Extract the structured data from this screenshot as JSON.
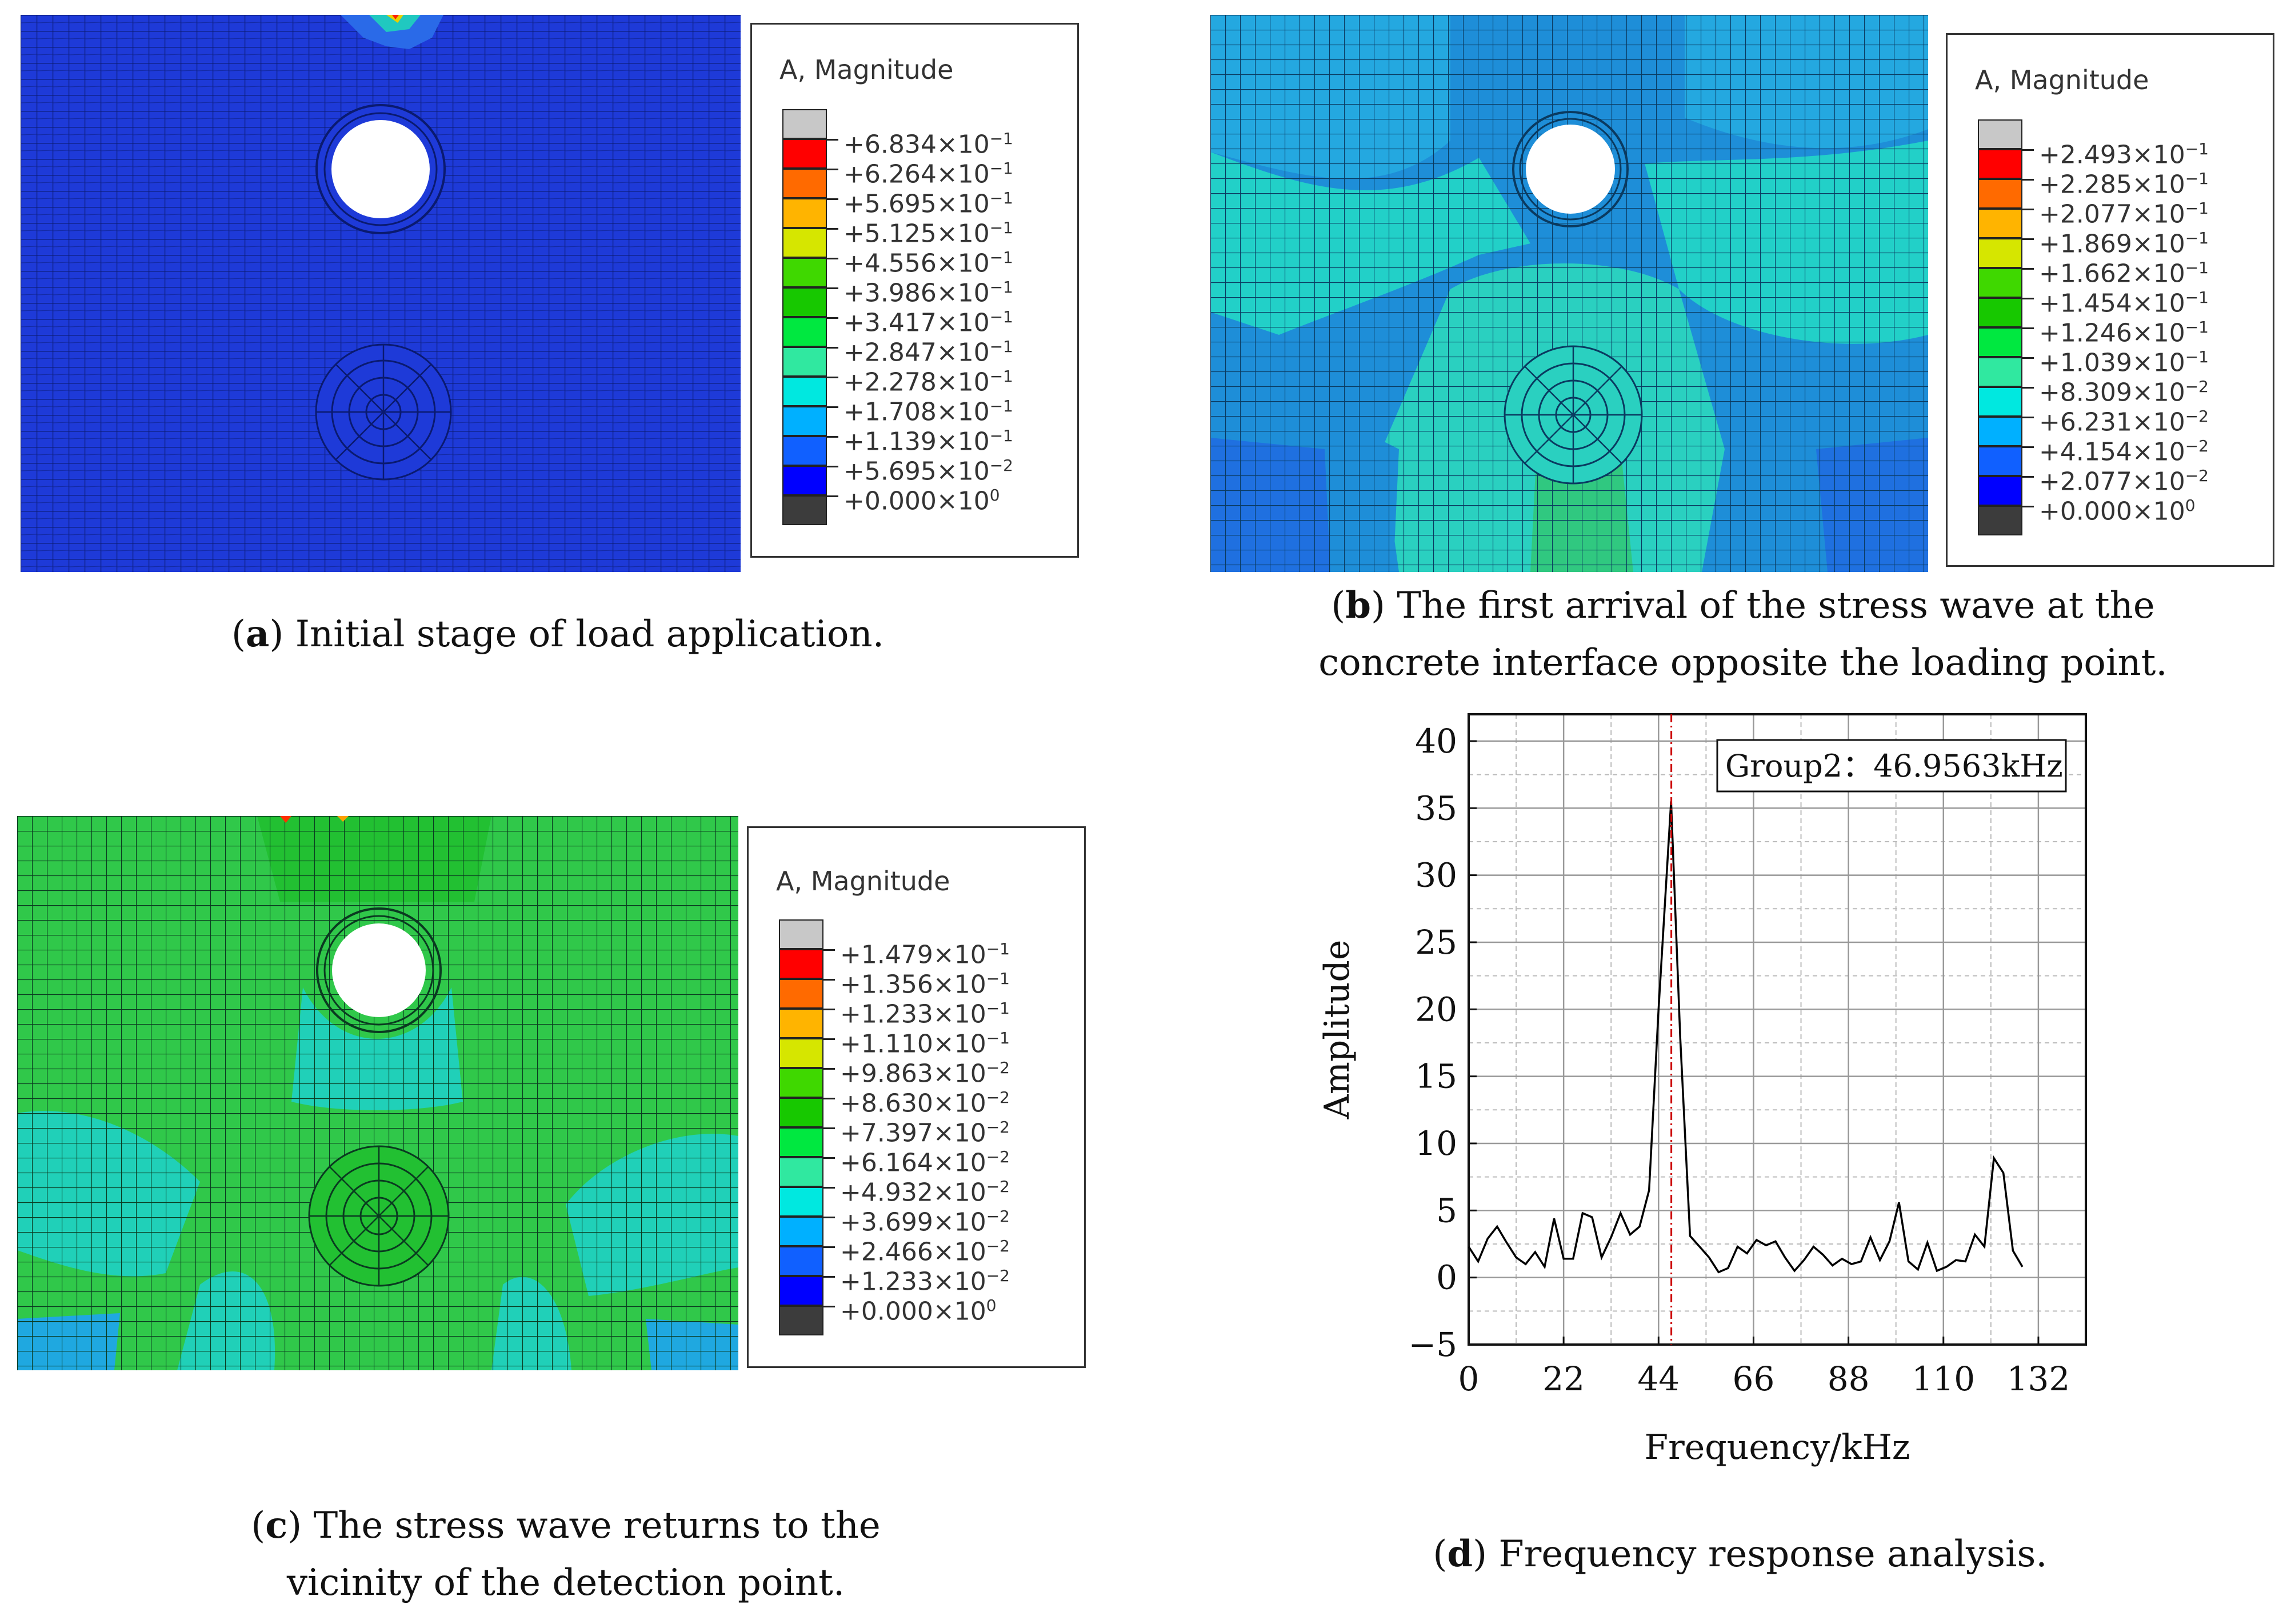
{
  "panels": [
    {
      "id": "a",
      "legend_title": "A, Magnitude",
      "legend_values": [
        "+6.834×10",
        "+6.264×10",
        "+5.695×10",
        "+5.125×10",
        "+4.556×10",
        "+3.986×10",
        "+3.417×10",
        "+2.847×10",
        "+2.278×10",
        "+1.708×10",
        "+1.139×10",
        "+5.695×10",
        "+0.000×10"
      ],
      "legend_exponents": [
        "−1",
        "−1",
        "−1",
        "−1",
        "−1",
        "−1",
        "−1",
        "−1",
        "−1",
        "−1",
        "−1",
        "−2",
        "0"
      ],
      "caption_letter": "a",
      "caption_text": ") Initial stage of load application."
    },
    {
      "id": "b",
      "legend_title": "A, Magnitude",
      "legend_values": [
        "+2.493×10",
        "+2.285×10",
        "+2.077×10",
        "+1.869×10",
        "+1.662×10",
        "+1.454×10",
        "+1.246×10",
        "+1.039×10",
        "+8.309×10",
        "+6.231×10",
        "+4.154×10",
        "+2.077×10",
        "+0.000×10"
      ],
      "legend_exponents": [
        "−1",
        "−1",
        "−1",
        "−1",
        "−1",
        "−1",
        "−1",
        "−1",
        "−2",
        "−2",
        "−2",
        "−2",
        "0"
      ],
      "caption_letter": "b",
      "caption_line1": ") The first arrival of the stress wave at the",
      "caption_line2": "concrete interface opposite the loading point."
    },
    {
      "id": "c",
      "legend_title": "A, Magnitude",
      "legend_values": [
        "+1.479×10",
        "+1.356×10",
        "+1.233×10",
        "+1.110×10",
        "+9.863×10",
        "+8.630×10",
        "+7.397×10",
        "+6.164×10",
        "+4.932×10",
        "+3.699×10",
        "+2.466×10",
        "+1.233×10",
        "+0.000×10"
      ],
      "legend_exponents": [
        "−1",
        "−1",
        "−1",
        "−1",
        "−2",
        "−2",
        "−2",
        "−2",
        "−2",
        "−2",
        "−2",
        "−2",
        "0"
      ],
      "caption_letter": "c",
      "caption_line1": ") The stress wave returns to the",
      "caption_line2": "vicinity of the detection point."
    },
    {
      "id": "d",
      "caption_letter": "d",
      "caption_text": ") Frequency response analysis."
    }
  ],
  "legend_colors": [
    "#c8c8c8",
    "#ff0000",
    "#ff6a00",
    "#ffb400",
    "#d6e600",
    "#3fd800",
    "#17c800",
    "#00e840",
    "#30e8a0",
    "#00e8e0",
    "#00b0ff",
    "#1060ff",
    "#0000ff",
    "#3c3c3c"
  ],
  "mesh_colors": {
    "a_bg": "#1e3ad8",
    "b_bg": "#1e8ed8",
    "b_cyan": "#22d0c8",
    "c_bg": "#30c84a",
    "c_cyan": "#20d0b8"
  },
  "chart_data": {
    "type": "line",
    "title": "",
    "xlabel": "Frequency/kHz",
    "ylabel": "Amplitude",
    "xlim": [
      0,
      143
    ],
    "ylim": [
      -5,
      42
    ],
    "xticks": [
      0,
      22,
      44,
      66,
      88,
      110,
      132
    ],
    "yticks": [
      -5,
      0,
      5,
      10,
      15,
      20,
      25,
      30,
      35,
      40
    ],
    "xtick_labels": [
      "0",
      "22",
      "44",
      "66",
      "88",
      "110",
      "132"
    ],
    "ytick_labels": [
      "−5",
      "0",
      "5",
      "10",
      "15",
      "20",
      "25",
      "30",
      "35",
      "40"
    ],
    "annotation": "Group2：46.9563kHz",
    "marker_x": 46.9563,
    "series": [
      {
        "name": "Group2",
        "x": [
          0,
          2.2,
          4.4,
          6.6,
          8.8,
          11,
          13.2,
          15.4,
          17.6,
          19.8,
          22,
          24.2,
          26.4,
          28.6,
          30.8,
          33,
          35.2,
          37.4,
          39.6,
          41.8,
          44,
          46.9,
          49,
          51.3,
          53.5,
          55.7,
          57.9,
          60.1,
          62.3,
          64.5,
          66.7,
          68.9,
          71.1,
          73.3,
          75.5,
          77.7,
          79.9,
          82.1,
          84.3,
          86.5,
          88.7,
          90.9,
          93.1,
          95.3,
          97.5,
          99.7,
          101.9,
          104.1,
          106.3,
          108.5,
          110.7,
          112.9,
          115.1,
          117.3,
          119.5,
          121.7,
          123.9,
          126.1,
          128.3
        ],
        "values": [
          2.3,
          1.2,
          2.9,
          3.8,
          2.6,
          1.5,
          1.0,
          1.9,
          0.8,
          4.4,
          1.4,
          1.4,
          4.8,
          4.5,
          1.5,
          3.0,
          4.8,
          3.2,
          3.8,
          6.5,
          20,
          35.5,
          18,
          3.1,
          2.3,
          1.5,
          0.4,
          0.7,
          2.3,
          1.8,
          2.8,
          2.4,
          2.7,
          1.5,
          0.5,
          1.3,
          2.3,
          1.7,
          0.9,
          1.4,
          1.0,
          1.2,
          3.0,
          1.3,
          2.7,
          5.6,
          1.2,
          0.6,
          2.6,
          0.5,
          0.8,
          1.3,
          1.2,
          3.2,
          2.3,
          8.9,
          7.8,
          2.0,
          0.8
        ]
      }
    ]
  }
}
